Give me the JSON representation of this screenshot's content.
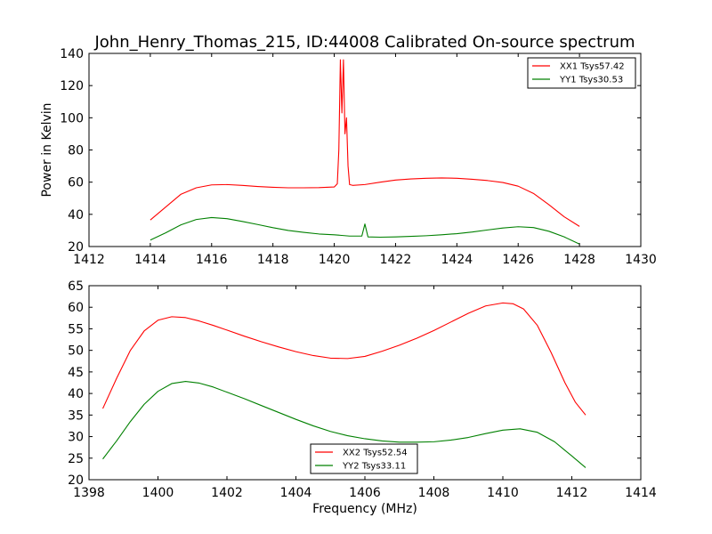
{
  "figure": {
    "title": "John_Henry_Thomas_215, ID:44008 Calibrated On-source spectrum"
  },
  "colors": {
    "red": "#ff0000",
    "green": "#008000",
    "frame": "#000000"
  },
  "chart_data": [
    {
      "type": "line",
      "title": "John_Henry_Thomas_215, ID:44008 Calibrated On-source spectrum",
      "xlabel": "",
      "ylabel": "Power in Kelvin",
      "xlim": [
        1412,
        1430
      ],
      "ylim": [
        20,
        140
      ],
      "xticks": [
        1412,
        1414,
        1416,
        1418,
        1420,
        1422,
        1424,
        1426,
        1428,
        1430
      ],
      "yticks": [
        20,
        40,
        60,
        80,
        100,
        120,
        140
      ],
      "grid": false,
      "legend_position": "top-right",
      "series": [
        {
          "name": "XX1 Tsys57.42",
          "color": "#ff0000",
          "x": [
            1414.0,
            1414.5,
            1415.0,
            1415.5,
            1416.0,
            1416.5,
            1417.0,
            1417.5,
            1418.0,
            1418.5,
            1419.0,
            1419.5,
            1420.0,
            1420.1,
            1420.15,
            1420.2,
            1420.25,
            1420.3,
            1420.35,
            1420.4,
            1420.45,
            1420.5,
            1420.6,
            1421.0,
            1421.5,
            1422.0,
            1422.5,
            1423.0,
            1423.5,
            1424.0,
            1424.5,
            1425.0,
            1425.5,
            1426.0,
            1426.5,
            1427.0,
            1427.5,
            1428.0
          ],
          "y": [
            36.5,
            44.5,
            52.5,
            56.5,
            58.3,
            58.5,
            58.0,
            57.3,
            56.8,
            56.5,
            56.5,
            56.6,
            57.0,
            59.0,
            80.0,
            136.0,
            103.0,
            136.0,
            90.0,
            100.0,
            70.0,
            58.5,
            58.0,
            58.5,
            60.0,
            61.3,
            62.0,
            62.4,
            62.6,
            62.4,
            61.8,
            61.0,
            59.8,
            57.5,
            53.0,
            46.0,
            38.5,
            32.5
          ]
        },
        {
          "name": "YY1 Tsys30.53",
          "color": "#008000",
          "x": [
            1414.0,
            1414.5,
            1415.0,
            1415.5,
            1416.0,
            1416.5,
            1417.0,
            1417.5,
            1418.0,
            1418.5,
            1419.0,
            1419.5,
            1420.0,
            1420.5,
            1420.9,
            1421.0,
            1421.1,
            1421.5,
            1422.0,
            1422.5,
            1423.0,
            1423.5,
            1424.0,
            1424.5,
            1425.0,
            1425.5,
            1426.0,
            1426.5,
            1427.0,
            1427.5,
            1428.0
          ],
          "y": [
            24.0,
            28.5,
            33.5,
            36.8,
            38.0,
            37.3,
            35.6,
            33.7,
            31.7,
            30.0,
            28.8,
            27.8,
            27.3,
            26.5,
            26.5,
            34.0,
            26.0,
            25.8,
            26.0,
            26.3,
            26.7,
            27.3,
            28.0,
            29.0,
            30.3,
            31.5,
            32.3,
            31.8,
            29.5,
            26.0,
            21.5
          ]
        }
      ]
    },
    {
      "type": "line",
      "title": "",
      "xlabel": "Frequency (MHz)",
      "ylabel": "",
      "xlim": [
        1398,
        1414
      ],
      "ylim": [
        20,
        65
      ],
      "xticks": [
        1398,
        1400,
        1402,
        1404,
        1406,
        1408,
        1410,
        1412,
        1414
      ],
      "yticks": [
        20,
        25,
        30,
        35,
        40,
        45,
        50,
        55,
        60,
        65
      ],
      "grid": false,
      "legend_position": "bottom-center",
      "series": [
        {
          "name": "XX2 Tsys52.54",
          "color": "#ff0000",
          "x": [
            1398.4,
            1398.8,
            1399.2,
            1399.6,
            1400.0,
            1400.4,
            1400.8,
            1401.2,
            1401.6,
            1402.0,
            1402.5,
            1403.0,
            1403.5,
            1404.0,
            1404.5,
            1405.0,
            1405.5,
            1406.0,
            1406.5,
            1407.0,
            1407.5,
            1408.0,
            1408.5,
            1409.0,
            1409.5,
            1410.0,
            1410.3,
            1410.6,
            1411.0,
            1411.4,
            1411.8,
            1412.1,
            1412.4
          ],
          "y": [
            36.5,
            43.5,
            50.0,
            54.5,
            57.0,
            57.8,
            57.6,
            56.8,
            55.8,
            54.7,
            53.3,
            52.0,
            50.8,
            49.7,
            48.8,
            48.2,
            48.1,
            48.6,
            49.8,
            51.2,
            52.8,
            54.6,
            56.6,
            58.6,
            60.3,
            61.0,
            60.8,
            59.6,
            55.8,
            49.5,
            42.5,
            38.0,
            35.0
          ]
        },
        {
          "name": "YY2 Tsys33.11",
          "color": "#008000",
          "x": [
            1398.4,
            1398.8,
            1399.2,
            1399.6,
            1400.0,
            1400.4,
            1400.8,
            1401.2,
            1401.6,
            1402.0,
            1402.5,
            1403.0,
            1403.5,
            1404.0,
            1404.5,
            1405.0,
            1405.5,
            1406.0,
            1406.5,
            1407.0,
            1407.5,
            1408.0,
            1408.5,
            1409.0,
            1409.5,
            1410.0,
            1410.5,
            1411.0,
            1411.5,
            1412.0,
            1412.4
          ],
          "y": [
            24.8,
            29.0,
            33.5,
            37.5,
            40.5,
            42.3,
            42.8,
            42.4,
            41.5,
            40.3,
            38.8,
            37.2,
            35.6,
            34.0,
            32.5,
            31.2,
            30.2,
            29.5,
            29.0,
            28.7,
            28.7,
            28.8,
            29.2,
            29.8,
            30.7,
            31.5,
            31.8,
            31.0,
            28.8,
            25.5,
            22.8
          ]
        }
      ]
    }
  ]
}
